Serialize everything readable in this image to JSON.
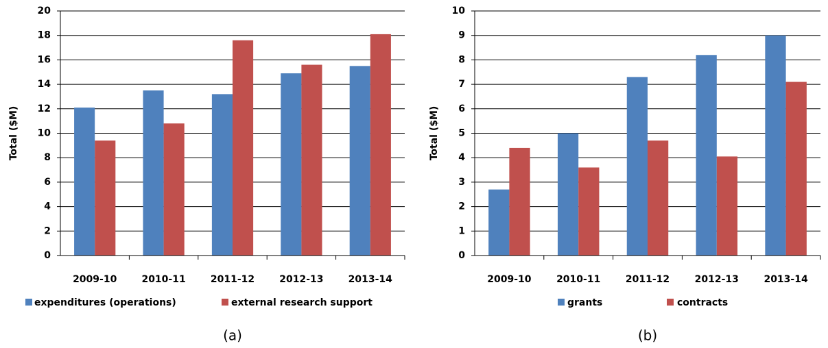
{
  "chart_data": [
    {
      "type": "bar",
      "caption": "(a)",
      "y_label": "Total ($M)",
      "categories": [
        "2009-10",
        "2010-11",
        "2011-12",
        "2012-13",
        "2013-14"
      ],
      "series": [
        {
          "name": "expenditures (operations)",
          "color": "#4f81bd",
          "values": [
            12.1,
            13.5,
            13.2,
            14.9,
            15.5
          ]
        },
        {
          "name": "external research support",
          "color": "#c0504d",
          "values": [
            9.4,
            10.8,
            17.6,
            15.6,
            18.1
          ]
        }
      ],
      "ylim": [
        0,
        20
      ],
      "yticks": [
        0,
        2,
        4,
        6,
        8,
        10,
        12,
        14,
        16,
        18,
        20
      ],
      "grid": true
    },
    {
      "type": "bar",
      "caption": "(b)",
      "y_label": "Total ($M)",
      "categories": [
        "2009-10",
        "2010-11",
        "2011-12",
        "2012-13",
        "2013-14"
      ],
      "series": [
        {
          "name": "grants",
          "color": "#4f81bd",
          "values": [
            2.7,
            5.0,
            7.3,
            8.2,
            9.0
          ]
        },
        {
          "name": "contracts",
          "color": "#c0504d",
          "values": [
            4.4,
            3.6,
            4.7,
            4.05,
            7.1
          ]
        }
      ],
      "ylim": [
        0,
        10
      ],
      "yticks": [
        0,
        1,
        2,
        3,
        4,
        5,
        6,
        7,
        8,
        9,
        10
      ],
      "grid": true
    }
  ]
}
